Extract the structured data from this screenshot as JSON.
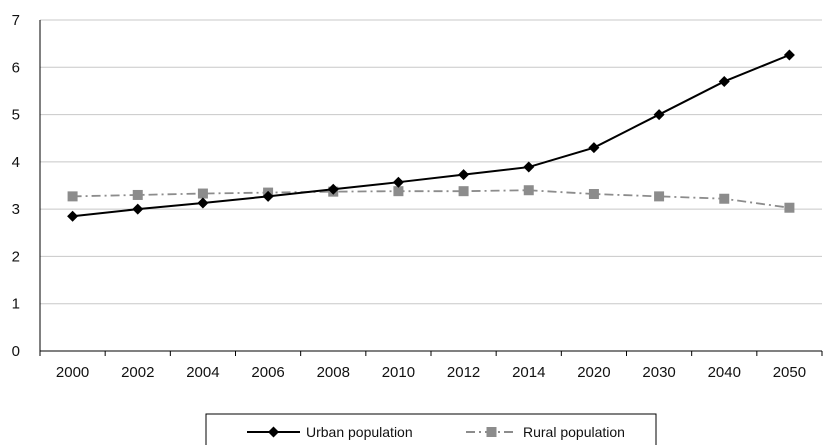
{
  "chart_data": {
    "type": "line",
    "categories": [
      "2000",
      "2002",
      "2004",
      "2006",
      "2008",
      "2010",
      "2012",
      "2014",
      "2020",
      "2030",
      "2040",
      "2050"
    ],
    "series": [
      {
        "name": "Urban population",
        "values": [
          2.85,
          3.0,
          3.13,
          3.27,
          3.42,
          3.57,
          3.73,
          3.89,
          4.3,
          5.0,
          5.7,
          6.26
        ],
        "color": "#000000",
        "marker": "diamond",
        "line_style": "solid"
      },
      {
        "name": "Rural population",
        "values": [
          3.27,
          3.3,
          3.33,
          3.35,
          3.37,
          3.38,
          3.38,
          3.4,
          3.32,
          3.27,
          3.22,
          3.03
        ],
        "color": "#8c8c8c",
        "marker": "square",
        "line_style": "dash-dot"
      }
    ],
    "ylim": [
      0,
      7
    ],
    "yticks": [
      "0",
      "1",
      "2",
      "3",
      "4",
      "5",
      "6",
      "7"
    ],
    "grid": "horizontal",
    "legend_position": "bottom"
  }
}
